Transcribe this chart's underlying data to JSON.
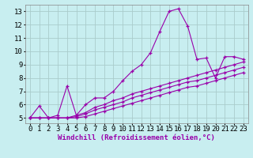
{
  "title": "",
  "xlabel": "Windchill (Refroidissement éolien,°C)",
  "ylabel": "",
  "bg_color": "#c8eef0",
  "line_color": "#9900aa",
  "grid_color": "#aacccc",
  "x_data": [
    0,
    1,
    2,
    3,
    4,
    5,
    6,
    7,
    8,
    9,
    10,
    11,
    12,
    13,
    14,
    15,
    16,
    17,
    18,
    19,
    20,
    21,
    22,
    23
  ],
  "series": {
    "main": [
      5.0,
      5.9,
      5.0,
      5.2,
      7.4,
      5.2,
      6.0,
      6.5,
      6.5,
      7.0,
      7.8,
      8.5,
      9.0,
      9.9,
      11.5,
      13.0,
      13.2,
      11.9,
      9.4,
      9.5,
      8.0,
      9.6,
      9.6,
      9.4
    ],
    "lower1": [
      5.0,
      5.0,
      5.0,
      5.0,
      5.0,
      5.2,
      5.4,
      5.8,
      6.0,
      6.3,
      6.5,
      6.8,
      7.0,
      7.2,
      7.4,
      7.6,
      7.8,
      8.0,
      8.2,
      8.4,
      8.6,
      8.8,
      9.0,
      9.2
    ],
    "lower2": [
      5.0,
      5.0,
      5.0,
      5.0,
      5.0,
      5.1,
      5.3,
      5.6,
      5.8,
      6.0,
      6.2,
      6.5,
      6.7,
      6.9,
      7.1,
      7.3,
      7.5,
      7.7,
      7.8,
      8.0,
      8.2,
      8.4,
      8.6,
      8.8
    ],
    "lower3": [
      5.0,
      5.0,
      5.0,
      5.0,
      5.0,
      5.0,
      5.1,
      5.3,
      5.5,
      5.7,
      5.9,
      6.1,
      6.3,
      6.5,
      6.7,
      6.9,
      7.1,
      7.3,
      7.4,
      7.6,
      7.8,
      8.0,
      8.2,
      8.4
    ]
  },
  "xlim": [
    -0.5,
    23.5
  ],
  "ylim": [
    4.6,
    13.5
  ],
  "yticks": [
    5,
    6,
    7,
    8,
    9,
    10,
    11,
    12,
    13
  ],
  "xticks": [
    0,
    1,
    2,
    3,
    4,
    5,
    6,
    7,
    8,
    9,
    10,
    11,
    12,
    13,
    14,
    15,
    16,
    17,
    18,
    19,
    20,
    21,
    22,
    23
  ],
  "xlabel_fontsize": 6.5,
  "tick_fontsize": 6.5
}
